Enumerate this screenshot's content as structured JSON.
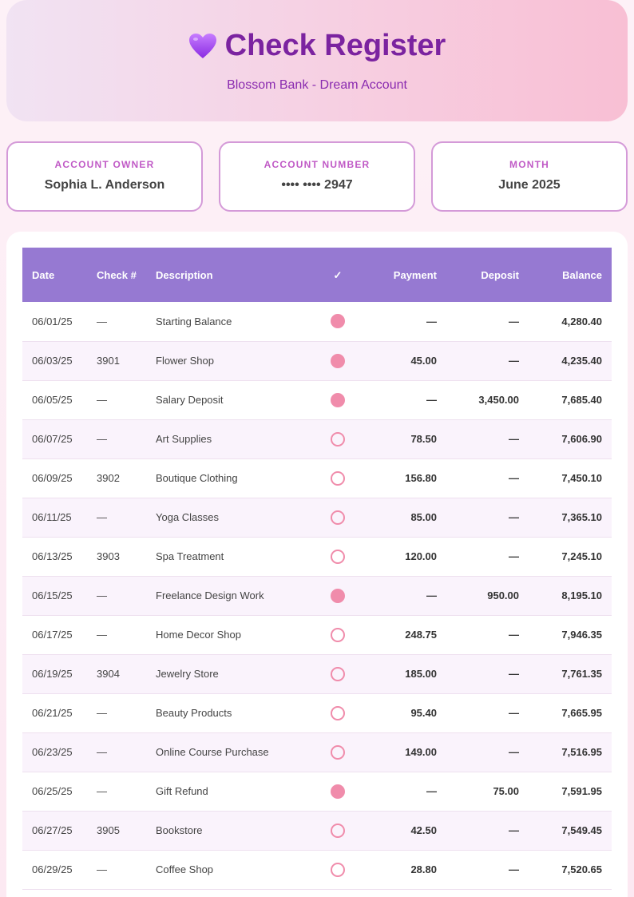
{
  "header": {
    "title": "Check Register",
    "subtitle": "Blossom Bank - Dream Account",
    "icon": "purple-heart-icon"
  },
  "info": {
    "owner_label": "Account Owner",
    "owner_value": "Sophia L. Anderson",
    "number_label": "Account Number",
    "number_value": "•••• •••• 2947",
    "month_label": "Month",
    "month_value": "June 2025"
  },
  "table": {
    "columns": [
      "Date",
      "Check #",
      "Description",
      "✓",
      "Payment",
      "Deposit",
      "Balance"
    ],
    "rows": [
      {
        "date": "06/01/25",
        "check": "—",
        "desc": "Starting Balance",
        "cleared": true,
        "payment": "—",
        "deposit": "—",
        "balance": "4,280.40"
      },
      {
        "date": "06/03/25",
        "check": "3901",
        "desc": "Flower Shop",
        "cleared": true,
        "payment": "45.00",
        "deposit": "—",
        "balance": "4,235.40"
      },
      {
        "date": "06/05/25",
        "check": "—",
        "desc": "Salary Deposit",
        "cleared": true,
        "payment": "—",
        "deposit": "3,450.00",
        "balance": "7,685.40"
      },
      {
        "date": "06/07/25",
        "check": "—",
        "desc": "Art Supplies",
        "cleared": false,
        "payment": "78.50",
        "deposit": "—",
        "balance": "7,606.90"
      },
      {
        "date": "06/09/25",
        "check": "3902",
        "desc": "Boutique Clothing",
        "cleared": false,
        "payment": "156.80",
        "deposit": "—",
        "balance": "7,450.10"
      },
      {
        "date": "06/11/25",
        "check": "—",
        "desc": "Yoga Classes",
        "cleared": false,
        "payment": "85.00",
        "deposit": "—",
        "balance": "7,365.10"
      },
      {
        "date": "06/13/25",
        "check": "3903",
        "desc": "Spa Treatment",
        "cleared": false,
        "payment": "120.00",
        "deposit": "—",
        "balance": "7,245.10"
      },
      {
        "date": "06/15/25",
        "check": "—",
        "desc": "Freelance Design Work",
        "cleared": true,
        "payment": "—",
        "deposit": "950.00",
        "balance": "8,195.10"
      },
      {
        "date": "06/17/25",
        "check": "—",
        "desc": "Home Decor Shop",
        "cleared": false,
        "payment": "248.75",
        "deposit": "—",
        "balance": "7,946.35"
      },
      {
        "date": "06/19/25",
        "check": "3904",
        "desc": "Jewelry Store",
        "cleared": false,
        "payment": "185.00",
        "deposit": "—",
        "balance": "7,761.35"
      },
      {
        "date": "06/21/25",
        "check": "—",
        "desc": "Beauty Products",
        "cleared": false,
        "payment": "95.40",
        "deposit": "—",
        "balance": "7,665.95"
      },
      {
        "date": "06/23/25",
        "check": "—",
        "desc": "Online Course Purchase",
        "cleared": false,
        "payment": "149.00",
        "deposit": "—",
        "balance": "7,516.95"
      },
      {
        "date": "06/25/25",
        "check": "—",
        "desc": "Gift Refund",
        "cleared": true,
        "payment": "—",
        "deposit": "75.00",
        "balance": "7,591.95"
      },
      {
        "date": "06/27/25",
        "check": "3905",
        "desc": "Bookstore",
        "cleared": false,
        "payment": "42.50",
        "deposit": "—",
        "balance": "7,549.45"
      },
      {
        "date": "06/29/25",
        "check": "—",
        "desc": "Coffee Shop",
        "cleared": false,
        "payment": "28.80",
        "deposit": "—",
        "balance": "7,520.65"
      }
    ]
  },
  "colors": {
    "accent_purple": "#7b23a0",
    "header_row": "#9679d2",
    "cleared_pink": "#f08cab"
  }
}
